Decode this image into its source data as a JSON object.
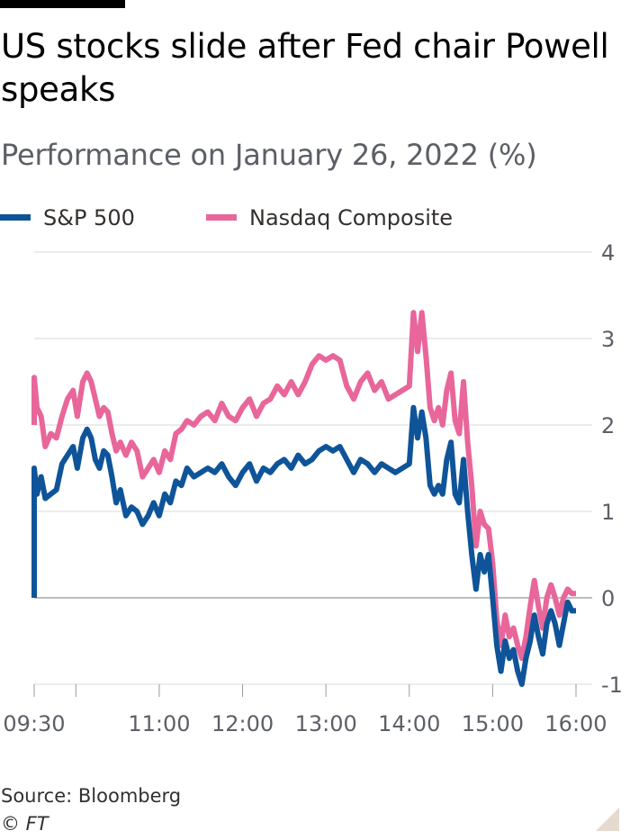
{
  "title": "US stocks slide after Fed chair Powell speaks",
  "subtitle": "Performance on January 26, 2022 (%)",
  "footer": {
    "source": "Source: Bloomberg",
    "copyright": "© FT"
  },
  "colors": {
    "sp500": "#0f5499",
    "nasdaq": "#e8669a",
    "grid": "#d9d9d9",
    "axis": "#9a9a9a",
    "text": "#5c5f66"
  },
  "icons": {
    "corner": "corner-fold-icon"
  },
  "chart_data": {
    "type": "line",
    "title": "US stocks slide after Fed chair Powell speaks",
    "subtitle": "Performance on January 26, 2022 (%)",
    "xlabel": "",
    "ylabel": "%",
    "grid": true,
    "legend": "top-left",
    "x_range": [
      "09:30",
      "16:00"
    ],
    "ylim": [
      -1,
      4
    ],
    "y_ticks": [
      -1,
      0,
      1,
      2,
      3,
      4
    ],
    "x_ticks": [
      {
        "label": "09:30",
        "labeled": true
      },
      {
        "label": "10:00",
        "labeled": false
      },
      {
        "label": "11:00",
        "labeled": true
      },
      {
        "label": "12:00",
        "labeled": true
      },
      {
        "label": "13:00",
        "labeled": true
      },
      {
        "label": "14:00",
        "labeled": true
      },
      {
        "label": "15:00",
        "labeled": true
      },
      {
        "label": "16:00",
        "labeled": true
      }
    ],
    "series": [
      {
        "name": "S&P 500",
        "color": "#0f5499",
        "points": [
          [
            "09:30",
            0
          ],
          [
            "09:30",
            1.5
          ],
          [
            "09:32",
            1.2
          ],
          [
            "09:35",
            1.4
          ],
          [
            "09:38",
            1.15
          ],
          [
            "09:42",
            1.2
          ],
          [
            "09:46",
            1.25
          ],
          [
            "09:50",
            1.55
          ],
          [
            "09:54",
            1.65
          ],
          [
            "09:58",
            1.75
          ],
          [
            "10:01",
            1.5
          ],
          [
            "10:05",
            1.85
          ],
          [
            "10:08",
            1.95
          ],
          [
            "10:11",
            1.85
          ],
          [
            "10:14",
            1.6
          ],
          [
            "10:17",
            1.5
          ],
          [
            "10:20",
            1.7
          ],
          [
            "10:23",
            1.65
          ],
          [
            "10:26",
            1.4
          ],
          [
            "10:29",
            1.1
          ],
          [
            "10:32",
            1.25
          ],
          [
            "10:36",
            0.95
          ],
          [
            "10:40",
            1.05
          ],
          [
            "10:44",
            1.0
          ],
          [
            "10:48",
            0.85
          ],
          [
            "10:52",
            0.95
          ],
          [
            "10:56",
            1.1
          ],
          [
            "11:00",
            0.95
          ],
          [
            "11:04",
            1.2
          ],
          [
            "11:08",
            1.1
          ],
          [
            "11:12",
            1.35
          ],
          [
            "11:16",
            1.3
          ],
          [
            "11:20",
            1.5
          ],
          [
            "11:25",
            1.4
          ],
          [
            "11:30",
            1.45
          ],
          [
            "11:35",
            1.5
          ],
          [
            "11:40",
            1.45
          ],
          [
            "11:45",
            1.55
          ],
          [
            "11:50",
            1.4
          ],
          [
            "11:55",
            1.3
          ],
          [
            "12:00",
            1.45
          ],
          [
            "12:05",
            1.55
          ],
          [
            "12:10",
            1.35
          ],
          [
            "12:15",
            1.5
          ],
          [
            "12:20",
            1.45
          ],
          [
            "12:25",
            1.55
          ],
          [
            "12:30",
            1.6
          ],
          [
            "12:35",
            1.5
          ],
          [
            "12:40",
            1.65
          ],
          [
            "12:45",
            1.55
          ],
          [
            "12:50",
            1.6
          ],
          [
            "12:55",
            1.7
          ],
          [
            "13:00",
            1.75
          ],
          [
            "13:05",
            1.7
          ],
          [
            "13:10",
            1.75
          ],
          [
            "13:15",
            1.6
          ],
          [
            "13:20",
            1.45
          ],
          [
            "13:25",
            1.6
          ],
          [
            "13:30",
            1.55
          ],
          [
            "13:35",
            1.45
          ],
          [
            "13:40",
            1.55
          ],
          [
            "13:45",
            1.5
          ],
          [
            "13:50",
            1.45
          ],
          [
            "13:55",
            1.5
          ],
          [
            "14:00",
            1.55
          ],
          [
            "14:03",
            2.2
          ],
          [
            "14:06",
            1.85
          ],
          [
            "14:09",
            2.15
          ],
          [
            "14:12",
            1.85
          ],
          [
            "14:15",
            1.3
          ],
          [
            "14:18",
            1.2
          ],
          [
            "14:21",
            1.3
          ],
          [
            "14:24",
            1.2
          ],
          [
            "14:27",
            1.6
          ],
          [
            "14:30",
            1.8
          ],
          [
            "14:33",
            1.2
          ],
          [
            "14:36",
            1.1
          ],
          [
            "14:39",
            1.6
          ],
          [
            "14:42",
            1.0
          ],
          [
            "14:45",
            0.5
          ],
          [
            "14:48",
            0.1
          ],
          [
            "14:51",
            0.5
          ],
          [
            "14:54",
            0.3
          ],
          [
            "14:57",
            0.5
          ],
          [
            "15:00",
            0.0
          ],
          [
            "15:03",
            -0.55
          ],
          [
            "15:06",
            -0.85
          ],
          [
            "15:09",
            -0.5
          ],
          [
            "15:12",
            -0.7
          ],
          [
            "15:15",
            -0.6
          ],
          [
            "15:18",
            -0.85
          ],
          [
            "15:21",
            -1.0
          ],
          [
            "15:24",
            -0.7
          ],
          [
            "15:27",
            -0.5
          ],
          [
            "15:30",
            -0.2
          ],
          [
            "15:33",
            -0.45
          ],
          [
            "15:36",
            -0.65
          ],
          [
            "15:39",
            -0.3
          ],
          [
            "15:42",
            -0.15
          ],
          [
            "15:45",
            -0.3
          ],
          [
            "15:48",
            -0.55
          ],
          [
            "15:51",
            -0.3
          ],
          [
            "15:54",
            -0.05
          ],
          [
            "15:57",
            -0.15
          ],
          [
            "16:00",
            -0.15
          ]
        ]
      },
      {
        "name": "Nasdaq Composite",
        "color": "#e8669a",
        "points": [
          [
            "09:30",
            2.0
          ],
          [
            "09:30",
            2.55
          ],
          [
            "09:32",
            2.2
          ],
          [
            "09:35",
            2.1
          ],
          [
            "09:38",
            1.75
          ],
          [
            "09:42",
            1.9
          ],
          [
            "09:46",
            1.85
          ],
          [
            "09:50",
            2.1
          ],
          [
            "09:54",
            2.3
          ],
          [
            "09:58",
            2.4
          ],
          [
            "10:01",
            2.1
          ],
          [
            "10:05",
            2.5
          ],
          [
            "10:08",
            2.6
          ],
          [
            "10:11",
            2.5
          ],
          [
            "10:14",
            2.3
          ],
          [
            "10:17",
            2.1
          ],
          [
            "10:20",
            2.2
          ],
          [
            "10:23",
            2.15
          ],
          [
            "10:26",
            1.9
          ],
          [
            "10:29",
            1.7
          ],
          [
            "10:32",
            1.8
          ],
          [
            "10:36",
            1.65
          ],
          [
            "10:40",
            1.8
          ],
          [
            "10:44",
            1.7
          ],
          [
            "10:48",
            1.4
          ],
          [
            "10:52",
            1.5
          ],
          [
            "10:56",
            1.6
          ],
          [
            "11:00",
            1.45
          ],
          [
            "11:04",
            1.7
          ],
          [
            "11:08",
            1.6
          ],
          [
            "11:12",
            1.9
          ],
          [
            "11:16",
            1.95
          ],
          [
            "11:20",
            2.05
          ],
          [
            "11:25",
            2.0
          ],
          [
            "11:30",
            2.1
          ],
          [
            "11:35",
            2.15
          ],
          [
            "11:40",
            2.05
          ],
          [
            "11:45",
            2.25
          ],
          [
            "11:50",
            2.1
          ],
          [
            "11:55",
            2.05
          ],
          [
            "12:00",
            2.2
          ],
          [
            "12:05",
            2.3
          ],
          [
            "12:10",
            2.1
          ],
          [
            "12:15",
            2.25
          ],
          [
            "12:20",
            2.3
          ],
          [
            "12:25",
            2.45
          ],
          [
            "12:30",
            2.35
          ],
          [
            "12:35",
            2.5
          ],
          [
            "12:40",
            2.35
          ],
          [
            "12:45",
            2.5
          ],
          [
            "12:50",
            2.7
          ],
          [
            "12:55",
            2.8
          ],
          [
            "13:00",
            2.75
          ],
          [
            "13:05",
            2.8
          ],
          [
            "13:10",
            2.75
          ],
          [
            "13:15",
            2.45
          ],
          [
            "13:20",
            2.3
          ],
          [
            "13:25",
            2.5
          ],
          [
            "13:30",
            2.6
          ],
          [
            "13:35",
            2.4
          ],
          [
            "13:40",
            2.5
          ],
          [
            "13:45",
            2.3
          ],
          [
            "13:50",
            2.35
          ],
          [
            "13:55",
            2.4
          ],
          [
            "14:00",
            2.45
          ],
          [
            "14:03",
            3.3
          ],
          [
            "14:06",
            2.85
          ],
          [
            "14:09",
            3.3
          ],
          [
            "14:12",
            2.8
          ],
          [
            "14:15",
            2.2
          ],
          [
            "14:18",
            2.05
          ],
          [
            "14:21",
            2.2
          ],
          [
            "14:24",
            2.0
          ],
          [
            "14:27",
            2.4
          ],
          [
            "14:30",
            2.6
          ],
          [
            "14:33",
            2.05
          ],
          [
            "14:36",
            1.9
          ],
          [
            "14:39",
            2.5
          ],
          [
            "14:42",
            1.8
          ],
          [
            "14:45",
            1.3
          ],
          [
            "14:48",
            0.6
          ],
          [
            "14:51",
            1.0
          ],
          [
            "14:54",
            0.85
          ],
          [
            "14:57",
            0.8
          ],
          [
            "15:00",
            0.4
          ],
          [
            "15:03",
            -0.25
          ],
          [
            "15:06",
            -0.55
          ],
          [
            "15:09",
            -0.2
          ],
          [
            "15:12",
            -0.45
          ],
          [
            "15:15",
            -0.35
          ],
          [
            "15:18",
            -0.55
          ],
          [
            "15:21",
            -0.7
          ],
          [
            "15:24",
            -0.45
          ],
          [
            "15:27",
            -0.1
          ],
          [
            "15:30",
            0.2
          ],
          [
            "15:33",
            -0.1
          ],
          [
            "15:36",
            -0.35
          ],
          [
            "15:39",
            0.0
          ],
          [
            "15:42",
            0.15
          ],
          [
            "15:45",
            0.0
          ],
          [
            "15:48",
            -0.2
          ],
          [
            "15:51",
            0.0
          ],
          [
            "15:54",
            0.1
          ],
          [
            "15:57",
            0.05
          ],
          [
            "16:00",
            0.05
          ]
        ]
      }
    ]
  }
}
